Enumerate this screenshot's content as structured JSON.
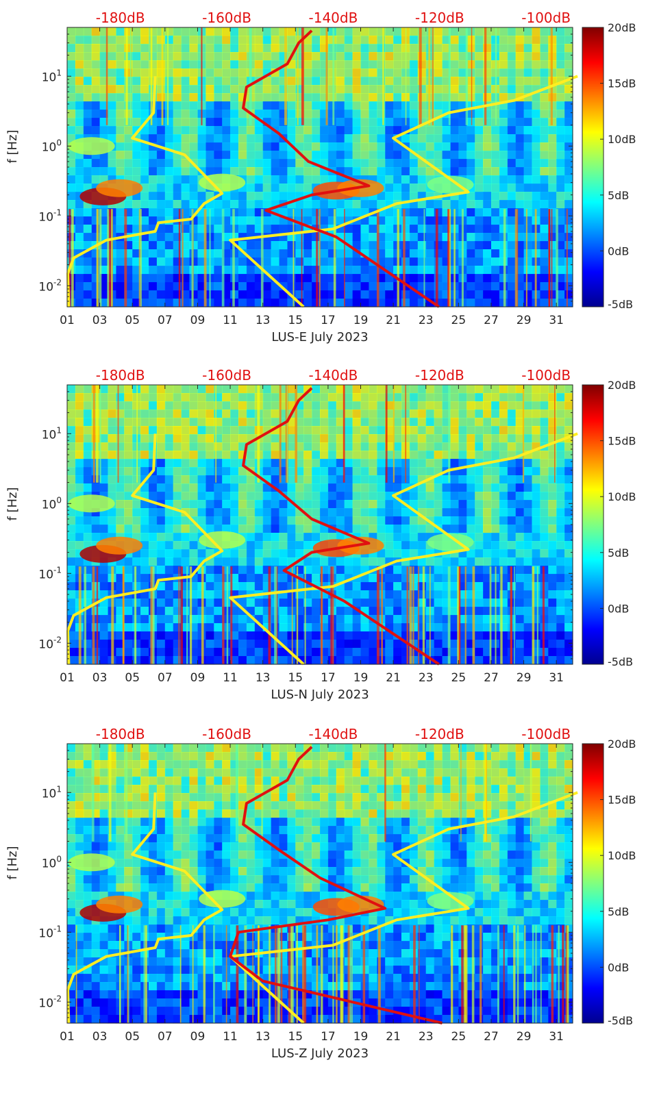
{
  "colors": {
    "accent": "#e01010",
    "noise_model": "#ffee22",
    "axis": "#262626",
    "colormap": [
      "#00008f",
      "#0000ff",
      "#0080ff",
      "#00ffff",
      "#80ff80",
      "#ffff00",
      "#ff8000",
      "#ff0000",
      "#800000"
    ]
  },
  "chart_data": [
    {
      "type": "heatmap",
      "title": "",
      "xlabel": "LUS-E July 2023",
      "ylabel": "f [Hz]",
      "x_range_days": [
        1,
        32
      ],
      "x_tick_labels": [
        "01",
        "03",
        "05",
        "07",
        "09",
        "11",
        "13",
        "15",
        "17",
        "19",
        "21",
        "23",
        "25",
        "27",
        "29",
        "31"
      ],
      "y_scale": "log",
      "y_range_hz": [
        0.005,
        50
      ],
      "y_tick_labels": [
        "10^-2",
        "10^-1",
        "10^0",
        "10^1"
      ],
      "colorbar_db": {
        "range": [
          -5,
          20
        ],
        "tick_labels": [
          "20dB",
          "15dB",
          "10dB",
          "5dB",
          "0dB",
          "-5dB"
        ]
      },
      "psd_axis_labels": [
        "-180dB",
        "-160dB",
        "-140dB",
        "-120dB",
        "-100dB"
      ],
      "psd_axis_range_db": [
        -190,
        -95
      ],
      "grid": false,
      "noise_model_low": {
        "color": "yellow",
        "points": [
          [
            0.1,
            0.005
          ],
          [
            0.04,
            0.015
          ],
          [
            0.4,
            0.025
          ],
          [
            2.4,
            0.045
          ],
          [
            5.4,
            0.06
          ],
          [
            5.6,
            0.08
          ],
          [
            7.6,
            0.09
          ],
          [
            8.4,
            0.15
          ],
          [
            9.5,
            0.21
          ],
          [
            7.2,
            0.75
          ],
          [
            4.0,
            1.3
          ],
          [
            5.3,
            3.0
          ],
          [
            5.4,
            10
          ]
        ]
      },
      "noise_model_high": {
        "color": "yellow",
        "points": [
          [
            14.5,
            0.005
          ],
          [
            10.0,
            0.045
          ],
          [
            16.3,
            0.065
          ],
          [
            20.2,
            0.15
          ],
          [
            24.6,
            0.22
          ],
          [
            20.0,
            1.3
          ],
          [
            23.4,
            3.0
          ],
          [
            27.4,
            4.5
          ],
          [
            31.3,
            10
          ]
        ]
      },
      "median_psd": {
        "color": "red",
        "points": [
          [
            22.8,
            0.005
          ],
          [
            16.5,
            0.05
          ],
          [
            12.2,
            0.12
          ],
          [
            15.0,
            0.2
          ],
          [
            18.5,
            0.27
          ],
          [
            14.8,
            0.6
          ],
          [
            13.0,
            1.5
          ],
          [
            10.8,
            3.5
          ],
          [
            11.0,
            7.0
          ],
          [
            13.5,
            15
          ],
          [
            14.2,
            30
          ],
          [
            15.0,
            45
          ]
        ]
      }
    },
    {
      "type": "heatmap",
      "title": "",
      "xlabel": "LUS-N July 2023",
      "ylabel": "f [Hz]",
      "x_range_days": [
        1,
        32
      ],
      "x_tick_labels": [
        "01",
        "03",
        "05",
        "07",
        "09",
        "11",
        "13",
        "15",
        "17",
        "19",
        "21",
        "23",
        "25",
        "27",
        "29",
        "31"
      ],
      "y_scale": "log",
      "y_range_hz": [
        0.005,
        50
      ],
      "y_tick_labels": [
        "10^-2",
        "10^-1",
        "10^0",
        "10^1"
      ],
      "colorbar_db": {
        "range": [
          -5,
          20
        ],
        "tick_labels": [
          "20dB",
          "15dB",
          "10dB",
          "5dB",
          "0dB",
          "-5dB"
        ]
      },
      "psd_axis_labels": [
        "-180dB",
        "-160dB",
        "-140dB",
        "-120dB",
        "-100dB"
      ],
      "psd_axis_range_db": [
        -190,
        -95
      ],
      "grid": false,
      "noise_model_low": {
        "color": "yellow",
        "points": [
          [
            0.1,
            0.005
          ],
          [
            0.04,
            0.015
          ],
          [
            0.4,
            0.025
          ],
          [
            2.4,
            0.045
          ],
          [
            5.4,
            0.06
          ],
          [
            5.6,
            0.08
          ],
          [
            7.6,
            0.09
          ],
          [
            8.4,
            0.15
          ],
          [
            9.5,
            0.21
          ],
          [
            7.2,
            0.75
          ],
          [
            4.0,
            1.3
          ],
          [
            5.3,
            3.0
          ],
          [
            5.4,
            10
          ]
        ]
      },
      "noise_model_high": {
        "color": "yellow",
        "points": [
          [
            14.5,
            0.005
          ],
          [
            10.0,
            0.045
          ],
          [
            16.3,
            0.065
          ],
          [
            20.2,
            0.15
          ],
          [
            24.6,
            0.22
          ],
          [
            20.0,
            1.3
          ],
          [
            23.4,
            3.0
          ],
          [
            27.4,
            4.5
          ],
          [
            31.3,
            10
          ]
        ]
      },
      "median_psd": {
        "color": "red",
        "points": [
          [
            22.8,
            0.005
          ],
          [
            17.0,
            0.04
          ],
          [
            13.3,
            0.11
          ],
          [
            15.0,
            0.2
          ],
          [
            18.5,
            0.27
          ],
          [
            15.0,
            0.6
          ],
          [
            13.0,
            1.5
          ],
          [
            10.8,
            3.5
          ],
          [
            11.0,
            7.0
          ],
          [
            13.5,
            15
          ],
          [
            14.2,
            30
          ],
          [
            15.0,
            45
          ]
        ]
      }
    },
    {
      "type": "heatmap",
      "title": "",
      "xlabel": "LUS-Z July 2023",
      "ylabel": "f [Hz]",
      "x_range_days": [
        1,
        32
      ],
      "x_tick_labels": [
        "01",
        "03",
        "05",
        "07",
        "09",
        "11",
        "13",
        "15",
        "17",
        "19",
        "21",
        "23",
        "25",
        "27",
        "29",
        "31"
      ],
      "y_scale": "log",
      "y_range_hz": [
        0.005,
        50
      ],
      "y_tick_labels": [
        "10^-2",
        "10^-1",
        "10^0",
        "10^1"
      ],
      "colorbar_db": {
        "range": [
          -5,
          20
        ],
        "tick_labels": [
          "20dB",
          "15dB",
          "10dB",
          "5dB",
          "0dB",
          "-5dB"
        ]
      },
      "psd_axis_labels": [
        "-180dB",
        "-160dB",
        "-140dB",
        "-120dB",
        "-100dB"
      ],
      "psd_axis_range_db": [
        -190,
        -95
      ],
      "grid": false,
      "noise_model_low": {
        "color": "yellow",
        "points": [
          [
            0.1,
            0.005
          ],
          [
            0.04,
            0.015
          ],
          [
            0.4,
            0.025
          ],
          [
            2.4,
            0.045
          ],
          [
            5.4,
            0.06
          ],
          [
            5.6,
            0.08
          ],
          [
            7.6,
            0.09
          ],
          [
            8.4,
            0.15
          ],
          [
            9.5,
            0.21
          ],
          [
            7.2,
            0.75
          ],
          [
            4.0,
            1.3
          ],
          [
            5.3,
            3.0
          ],
          [
            5.4,
            10
          ]
        ]
      },
      "noise_model_high": {
        "color": "yellow",
        "points": [
          [
            14.5,
            0.005
          ],
          [
            10.0,
            0.045
          ],
          [
            16.3,
            0.065
          ],
          [
            20.2,
            0.15
          ],
          [
            24.6,
            0.22
          ],
          [
            20.0,
            1.3
          ],
          [
            23.4,
            3.0
          ],
          [
            27.4,
            4.5
          ],
          [
            31.3,
            10
          ]
        ]
      },
      "median_psd": {
        "color": "red",
        "points": [
          [
            23.0,
            0.005
          ],
          [
            12.0,
            0.02
          ],
          [
            10.0,
            0.045
          ],
          [
            10.5,
            0.1
          ],
          [
            16.0,
            0.15
          ],
          [
            19.5,
            0.22
          ],
          [
            15.5,
            0.6
          ],
          [
            13.0,
            1.5
          ],
          [
            10.8,
            3.5
          ],
          [
            11.0,
            7.0
          ],
          [
            13.5,
            15
          ],
          [
            14.2,
            30
          ],
          [
            15.0,
            45
          ]
        ]
      }
    }
  ]
}
